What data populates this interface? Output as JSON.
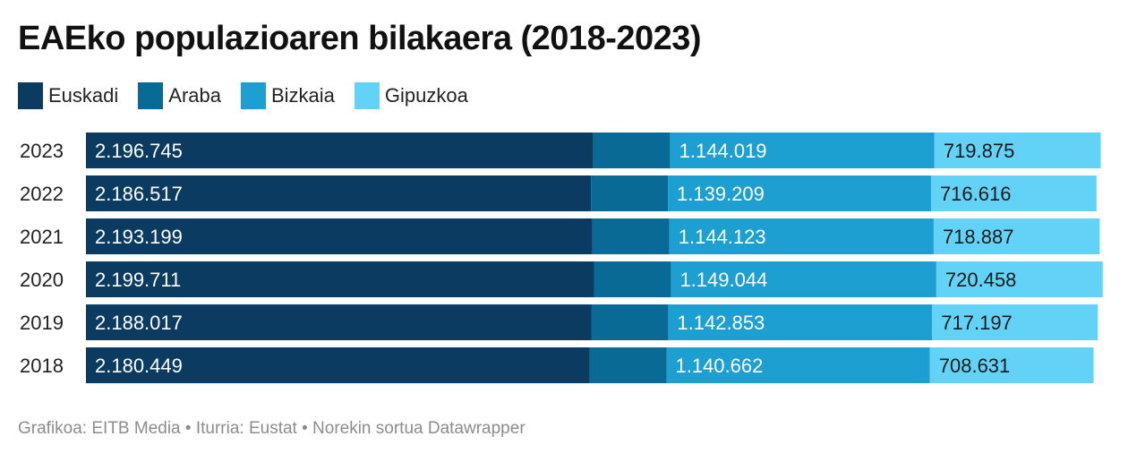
{
  "title": "EAEko populazioaren bilakaera (2018-2023)",
  "footer": "Grafikoa: EITB Media • Iturria: Eustat • Norekin sortua Datawrapper",
  "chart_data": {
    "type": "bar",
    "stacked": true,
    "orientation": "horizontal",
    "categories": [
      "2023",
      "2022",
      "2021",
      "2020",
      "2019",
      "2018"
    ],
    "series": [
      {
        "name": "Euskadi",
        "color": "#0b3b60",
        "values": [
          2196745,
          2186517,
          2193199,
          2199711,
          2188017,
          2180449
        ],
        "labels": [
          "2.196.745",
          "2.186.517",
          "2.193.199",
          "2.199.711",
          "2.188.017",
          "2.180.449"
        ]
      },
      {
        "name": "Araba",
        "color": "#0a6a96",
        "values": [
          null,
          null,
          null,
          null,
          null,
          null
        ],
        "labels": [
          "",
          "",
          "",
          "",
          "",
          ""
        ]
      },
      {
        "name": "Bizkaia",
        "color": "#1d9fd2",
        "values": [
          1144019,
          1139209,
          1144123,
          1149044,
          1142853,
          1140662
        ],
        "labels": [
          "1.144.019",
          "1.139.209",
          "1.144.123",
          "1.149.044",
          "1.142.853",
          "1.140.662"
        ]
      },
      {
        "name": "Gipuzkoa",
        "color": "#62d2f7",
        "values": [
          719875,
          716616,
          718887,
          720458,
          717197,
          708631
        ],
        "labels": [
          "719.875",
          "716.616",
          "718.887",
          "720.458",
          "717.197",
          "708.631"
        ]
      }
    ],
    "estimated_values": {
      "Araba": [
        333000,
        333000,
        333000,
        333000,
        333000,
        333000
      ]
    },
    "grid": false,
    "legend_position": "top-left"
  }
}
